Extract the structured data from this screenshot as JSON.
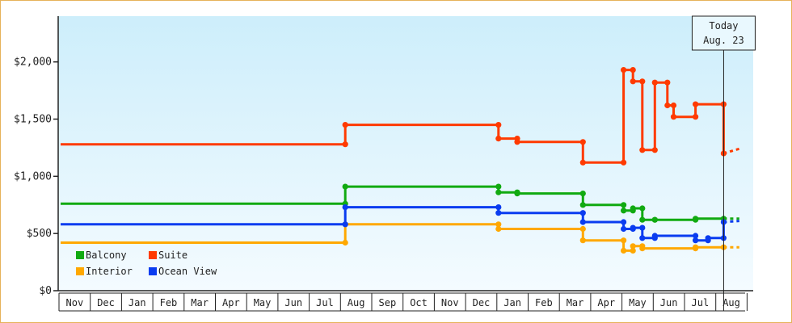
{
  "chart_data": {
    "type": "line",
    "title": "",
    "xlabel": "",
    "ylabel": "",
    "ylim": [
      0,
      2400
    ],
    "yticks": [
      0,
      500,
      1000,
      1500,
      2000
    ],
    "ytick_labels": [
      "$0",
      "$500",
      "$1,000",
      "$1,500",
      "$2,000"
    ],
    "x_axis_months": [
      "Nov",
      "Dec",
      "Jan",
      "Feb",
      "Mar",
      "Apr",
      "May",
      "Jun",
      "Jul",
      "Aug",
      "Sep",
      "Oct",
      "Nov",
      "Dec",
      "Jan",
      "Feb",
      "Mar",
      "Apr",
      "May",
      "Jun",
      "Jul",
      "Aug"
    ],
    "today_label": "Today",
    "today_date": "Aug. 23",
    "today_index": 21.2,
    "grid": false,
    "legend_position": "bottom-left",
    "series": [
      {
        "name": "Balcony",
        "color": "#11aa11",
        "points": [
          [
            0.0,
            760
          ],
          [
            9.1,
            760
          ],
          [
            9.1,
            910
          ],
          [
            14.0,
            910
          ],
          [
            14.0,
            860
          ],
          [
            14.6,
            860
          ],
          [
            14.6,
            850
          ],
          [
            16.7,
            850
          ],
          [
            16.7,
            750
          ],
          [
            18.0,
            750
          ],
          [
            18.0,
            700
          ],
          [
            18.3,
            700
          ],
          [
            18.3,
            720
          ],
          [
            18.6,
            720
          ],
          [
            18.6,
            620
          ],
          [
            19.0,
            620
          ],
          [
            19.0,
            620
          ],
          [
            20.3,
            620
          ],
          [
            20.3,
            630
          ],
          [
            21.2,
            630
          ]
        ],
        "forecast": [
          [
            21.2,
            630
          ],
          [
            21.7,
            630
          ]
        ]
      },
      {
        "name": "Suite",
        "color": "#ff3a00",
        "points": [
          [
            0.0,
            1280
          ],
          [
            9.1,
            1280
          ],
          [
            9.1,
            1450
          ],
          [
            14.0,
            1450
          ],
          [
            14.0,
            1330
          ],
          [
            14.6,
            1330
          ],
          [
            14.6,
            1300
          ],
          [
            16.7,
            1300
          ],
          [
            16.7,
            1120
          ],
          [
            18.0,
            1120
          ],
          [
            18.0,
            1930
          ],
          [
            18.3,
            1930
          ],
          [
            18.3,
            1830
          ],
          [
            18.6,
            1830
          ],
          [
            18.6,
            1230
          ],
          [
            19.0,
            1230
          ],
          [
            19.0,
            1820
          ],
          [
            19.4,
            1820
          ],
          [
            19.4,
            1620
          ],
          [
            19.6,
            1620
          ],
          [
            19.6,
            1520
          ],
          [
            20.3,
            1520
          ],
          [
            20.3,
            1630
          ],
          [
            21.2,
            1630
          ],
          [
            21.2,
            1200
          ]
        ],
        "forecast": [
          [
            21.2,
            1200
          ],
          [
            21.7,
            1240
          ]
        ]
      },
      {
        "name": "Interior",
        "color": "#ffa800",
        "points": [
          [
            0.0,
            420
          ],
          [
            9.1,
            420
          ],
          [
            9.1,
            580
          ],
          [
            14.0,
            580
          ],
          [
            14.0,
            540
          ],
          [
            16.7,
            540
          ],
          [
            16.7,
            440
          ],
          [
            18.0,
            440
          ],
          [
            18.0,
            350
          ],
          [
            18.3,
            350
          ],
          [
            18.3,
            390
          ],
          [
            18.6,
            390
          ],
          [
            18.6,
            370
          ],
          [
            20.3,
            370
          ],
          [
            20.3,
            380
          ],
          [
            21.2,
            380
          ]
        ],
        "forecast": [
          [
            21.2,
            380
          ],
          [
            21.7,
            380
          ]
        ]
      },
      {
        "name": "Ocean View",
        "color": "#0a3cf0",
        "points": [
          [
            0.0,
            580
          ],
          [
            9.1,
            580
          ],
          [
            9.1,
            730
          ],
          [
            14.0,
            730
          ],
          [
            14.0,
            680
          ],
          [
            16.7,
            680
          ],
          [
            16.7,
            600
          ],
          [
            18.0,
            600
          ],
          [
            18.0,
            540
          ],
          [
            18.3,
            540
          ],
          [
            18.3,
            550
          ],
          [
            18.6,
            550
          ],
          [
            18.6,
            460
          ],
          [
            19.0,
            460
          ],
          [
            19.0,
            480
          ],
          [
            20.3,
            480
          ],
          [
            20.3,
            440
          ],
          [
            20.7,
            440
          ],
          [
            20.7,
            460
          ],
          [
            21.2,
            460
          ],
          [
            21.2,
            600
          ]
        ],
        "forecast": [
          [
            21.2,
            600
          ],
          [
            21.7,
            610
          ]
        ]
      }
    ]
  }
}
